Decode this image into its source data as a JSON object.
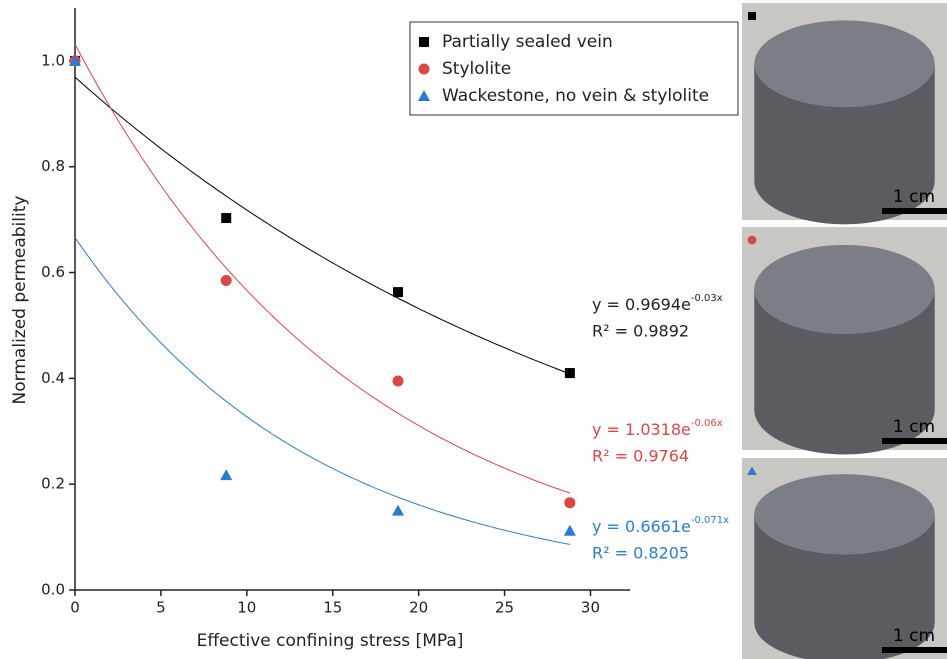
{
  "chart_data": {
    "type": "scatter",
    "x_label": "Effective confining stress [MPa]",
    "y_label": "Normalized permeability",
    "xlim": [
      0,
      32.3
    ],
    "xticks": [
      0,
      5,
      10,
      15,
      20,
      25,
      30
    ],
    "ylim": [
      0,
      1.1
    ],
    "yticks": [
      {
        "value": 0,
        "label": "0.0"
      },
      0.2,
      0.4,
      0.6,
      0.8,
      {
        "value": 1,
        "label": "1.0"
      }
    ],
    "legend": "top-right",
    "series": [
      {
        "name": "Partially sealed vein",
        "color": "#000000",
        "marker": "square",
        "x": [
          0,
          8.8,
          18.8,
          28.8
        ],
        "values": [
          1.0,
          0.703,
          0.563,
          0.41
        ],
        "fit": {
          "a": 0.9694,
          "k": -0.03,
          "equation": "y = 0.9694e",
          "exponent": "-0.03x",
          "r2": "R² = 0.9892"
        }
      },
      {
        "name": "Stylolite",
        "color": "#e04545",
        "marker": "circle",
        "x": [
          0,
          8.8,
          18.8,
          28.8
        ],
        "values": [
          1.0,
          0.585,
          0.395,
          0.165
        ],
        "fit": {
          "a": 1.0318,
          "k": -0.06,
          "equation": "y = 1.0318e",
          "exponent": "-0.06x",
          "r2": "R² = 0.9764"
        }
      },
      {
        "name": "Wackestone, no vein & stylolite",
        "color": "#2b7bd6",
        "marker": "triangle",
        "x": [
          0,
          8.8,
          18.8,
          28.8
        ],
        "values": [
          1.0,
          0.217,
          0.15,
          0.112
        ],
        "fit": {
          "a": 0.6661,
          "k": -0.071,
          "equation": "y = 0.6661e",
          "exponent": "-0.071x",
          "r2": "R² = 0.8205"
        }
      }
    ],
    "photos": [
      {
        "scale_label": "1 cm"
      },
      {
        "scale_label": "1 cm"
      },
      {
        "scale_label": "1 cm"
      }
    ]
  }
}
